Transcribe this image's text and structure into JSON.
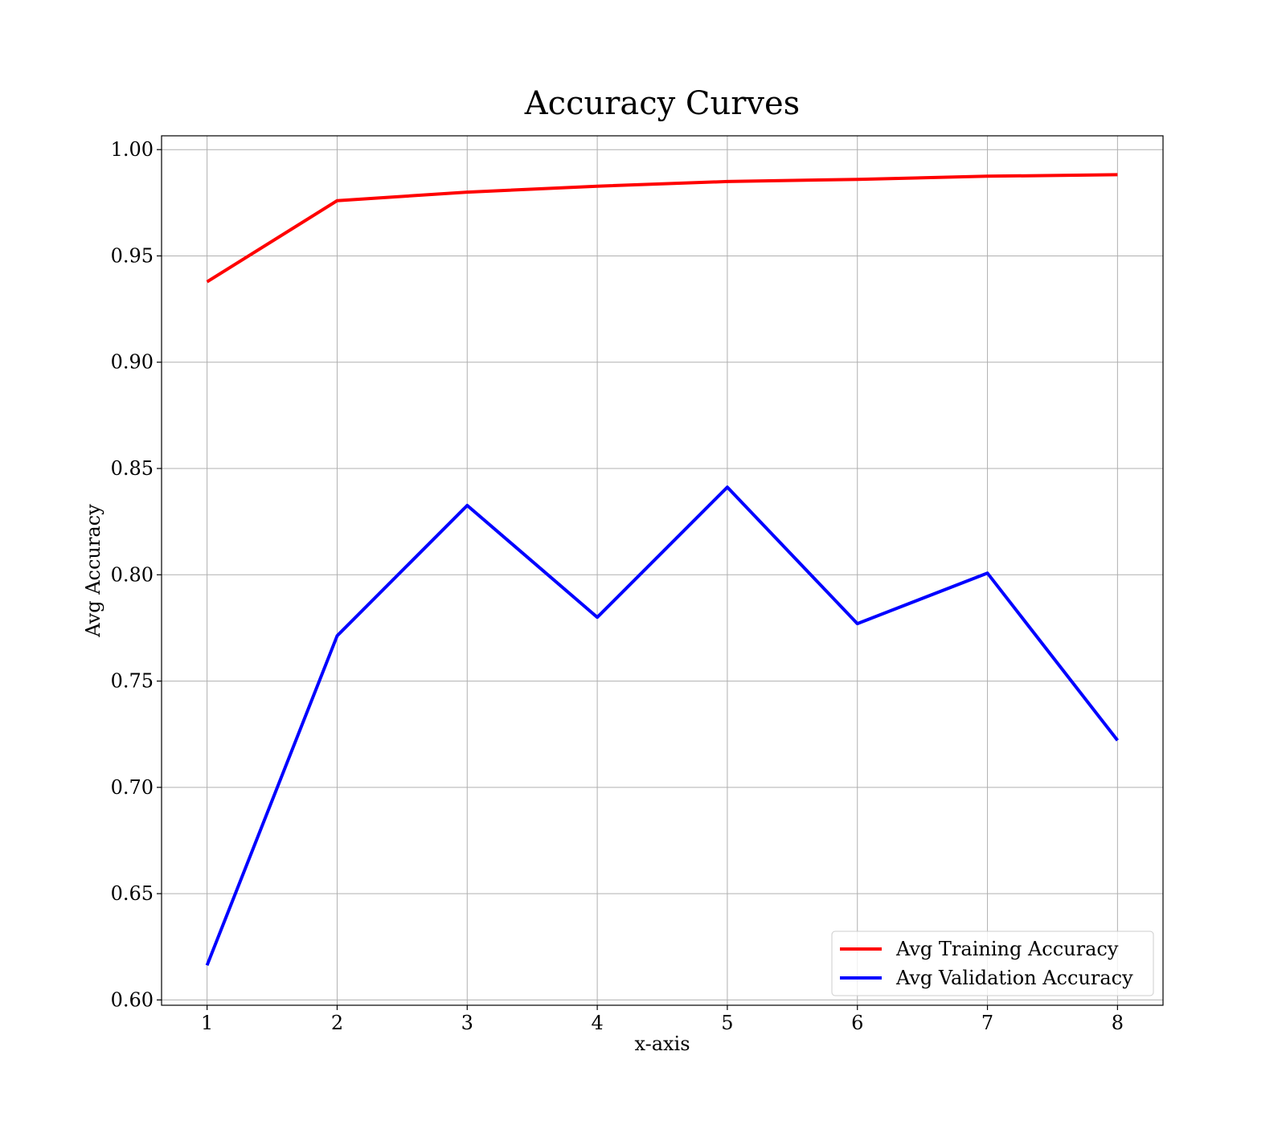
{
  "chart_data": {
    "type": "line",
    "title": "Accuracy Curves",
    "xlabel": "x-axis",
    "ylabel": "Avg Accuracy",
    "x": [
      1,
      2,
      3,
      4,
      5,
      6,
      7,
      8
    ],
    "xlim": [
      0.65,
      8.35
    ],
    "ylim": [
      0.5975,
      1.0065
    ],
    "xticks": [
      "1",
      "2",
      "3",
      "4",
      "5",
      "6",
      "7",
      "8"
    ],
    "yticks": [
      "0.60",
      "0.65",
      "0.70",
      "0.75",
      "0.80",
      "0.85",
      "0.90",
      "0.95",
      "1.00"
    ],
    "grid": true,
    "legend_position": "lower right",
    "series": [
      {
        "name": "Avg Training Accuracy",
        "color": "#ff0000",
        "values": [
          0.9378,
          0.976,
          0.98,
          0.9828,
          0.985,
          0.986,
          0.9875,
          0.9882
        ]
      },
      {
        "name": "Avg Validation Accuracy",
        "color": "#0000ff",
        "values": [
          0.6163,
          0.7713,
          0.8326,
          0.78,
          0.8412,
          0.777,
          0.8008,
          0.7221
        ]
      }
    ]
  }
}
